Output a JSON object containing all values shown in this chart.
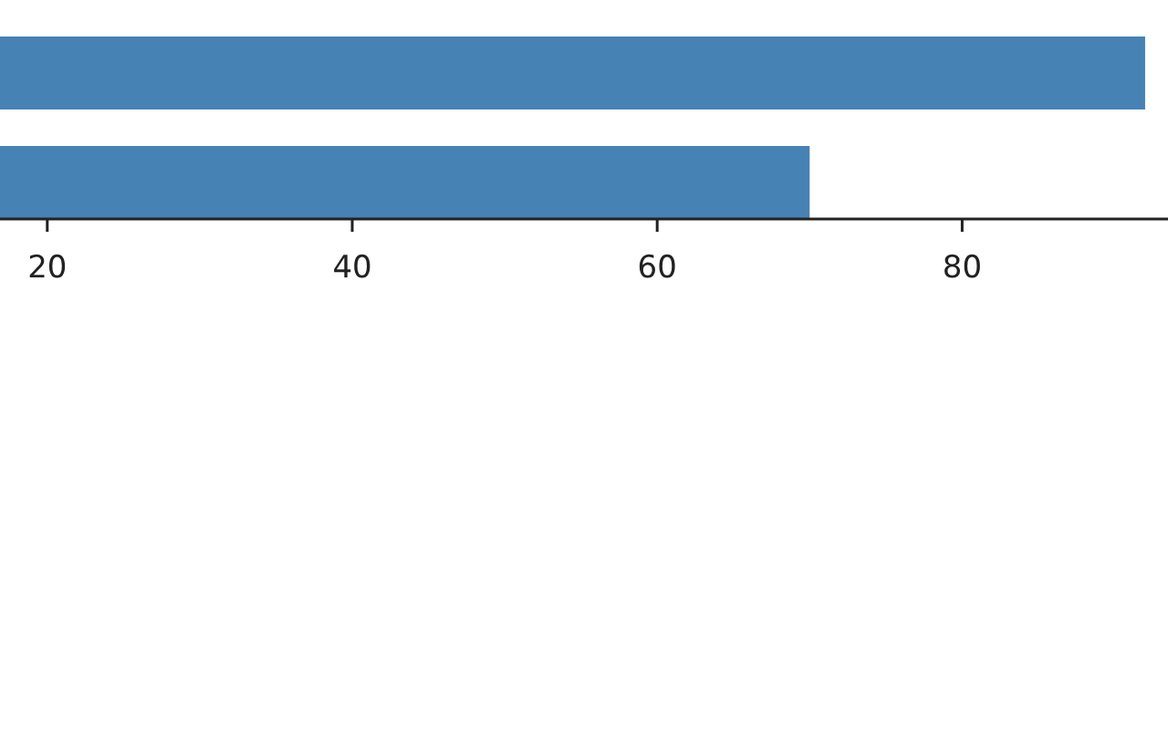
{
  "chart_data": {
    "type": "bar",
    "orientation": "horizontal",
    "categories": [
      null,
      null
    ],
    "values": [
      92,
      70
    ],
    "color": "#4682b4",
    "xlim": [
      16.9,
      93.5
    ],
    "xticks": [
      20,
      40,
      60,
      80
    ],
    "tick_labels": "x"
  }
}
